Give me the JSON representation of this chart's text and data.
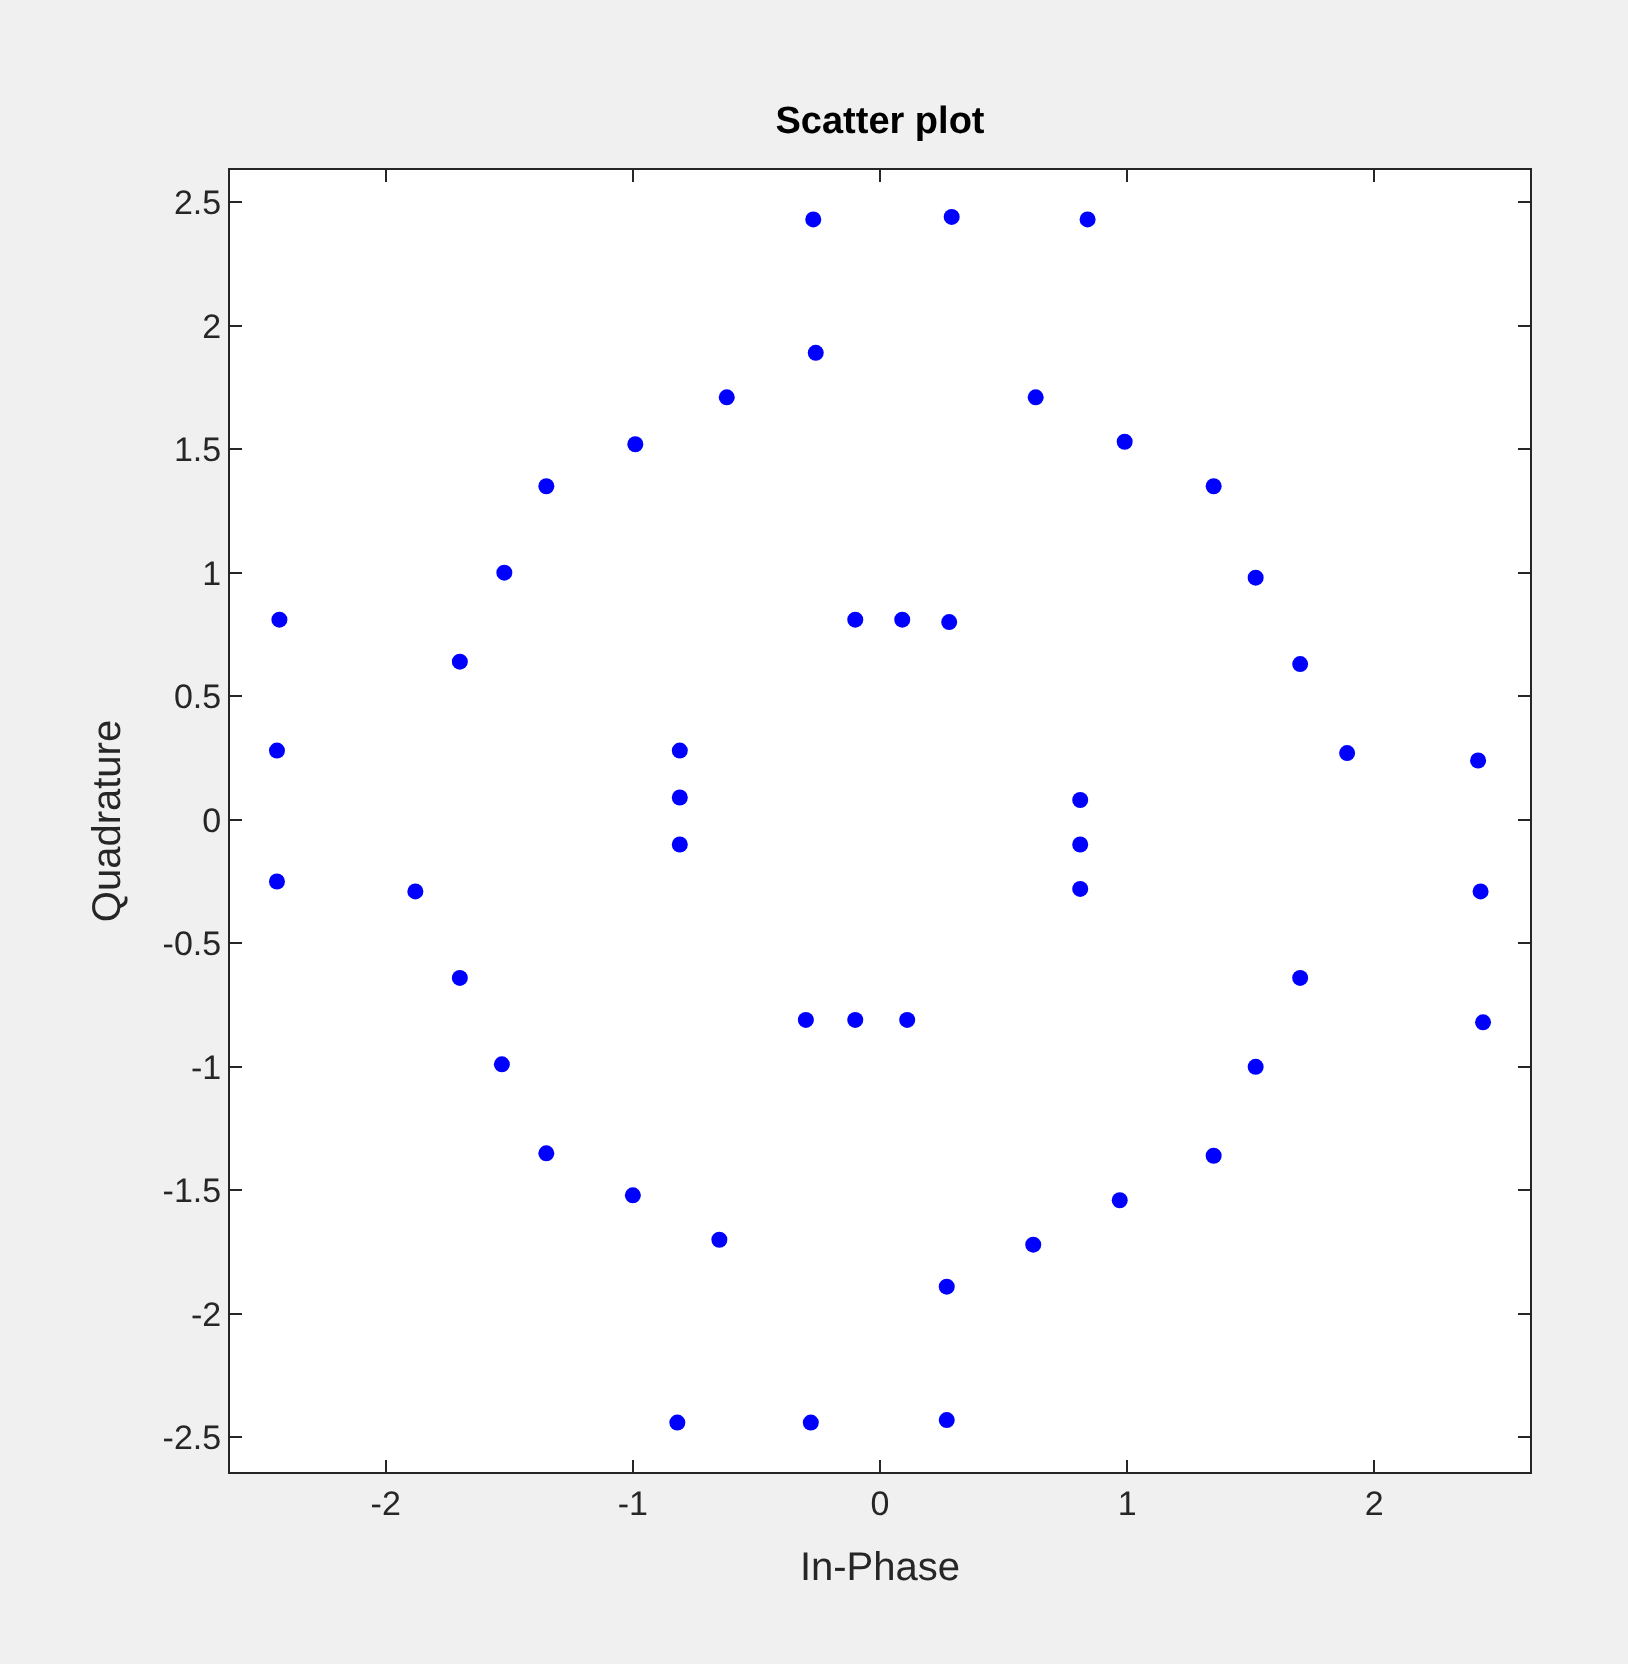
{
  "chart_data": {
    "type": "scatter",
    "title": "Scatter plot",
    "xlabel": "In-Phase",
    "ylabel": "Quadrature",
    "xlim": [
      -2.63,
      2.63
    ],
    "ylim": [
      -2.64,
      2.63
    ],
    "xticks": [
      -2,
      -1,
      0,
      1,
      2
    ],
    "yticks": [
      -2.5,
      -2,
      -1.5,
      -1,
      -0.5,
      0,
      0.5,
      1,
      1.5,
      2,
      2.5
    ],
    "marker": "circle",
    "series": [
      {
        "color": "#0000ff",
        "x": [
          -0.27,
          0.29,
          0.84,
          0.63,
          0.99,
          1.35,
          1.52,
          1.7,
          1.89,
          2.42,
          2.43,
          2.44,
          1.7,
          1.52,
          1.35,
          0.97,
          0.62,
          0.27,
          0.27,
          -0.28,
          -0.82,
          -0.65,
          -1.0,
          -1.35,
          -1.53,
          -1.7,
          -1.88,
          -2.44,
          -2.44,
          -2.43,
          -1.7,
          -1.52,
          -1.35,
          -0.99,
          -0.62,
          -0.26,
          -0.1,
          0.09,
          0.28,
          0.81,
          0.81,
          0.81,
          0.11,
          -0.1,
          -0.3,
          -0.81,
          -0.81,
          -0.81
        ],
        "values": [
          2.43,
          2.44,
          2.43,
          1.71,
          1.53,
          1.35,
          0.98,
          0.63,
          0.27,
          0.24,
          -0.29,
          -0.82,
          -0.64,
          -1.0,
          -1.36,
          -1.54,
          -1.72,
          -1.89,
          -2.43,
          -2.44,
          -2.44,
          -1.7,
          -1.52,
          -1.35,
          -0.99,
          -0.64,
          -0.29,
          -0.25,
          0.28,
          0.81,
          0.64,
          1.0,
          1.35,
          1.52,
          1.71,
          1.89,
          0.81,
          0.81,
          0.8,
          0.08,
          -0.1,
          -0.28,
          -0.81,
          -0.81,
          -0.81,
          0.28,
          0.09,
          -0.1
        ]
      }
    ]
  }
}
